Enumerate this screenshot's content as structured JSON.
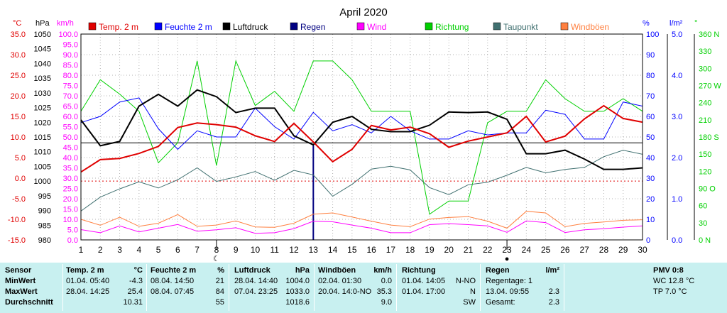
{
  "title": "April 2020",
  "colors": {
    "temp": "#e00000",
    "humidity": "#0000ff",
    "pressure": "#000000",
    "rain": "#000080",
    "wind": "#ff00ff",
    "direction": "#00d000",
    "dewpoint": "#407070",
    "gust": "#ff8040",
    "stats_bg": "#c8f0f0"
  },
  "axes": {
    "temp": {
      "unit": "°C",
      "color": "#e00000",
      "ticks": [
        "35.0",
        "30.0",
        "25.0",
        "20.0",
        "15.0",
        "10.0",
        "5.0",
        "0.0",
        "-5.0",
        "-10.0",
        "-15.0"
      ]
    },
    "pressure": {
      "unit": "hPa",
      "color": "#000000",
      "ticks": [
        "1050",
        "1045",
        "1040",
        "1035",
        "1030",
        "1025",
        "1020",
        "1015",
        "1010",
        "1005",
        "1000",
        "995",
        "990",
        "985",
        "980"
      ]
    },
    "wind": {
      "unit": "km/h",
      "color": "#ff00ff",
      "ticks": [
        "100.0",
        "95.0",
        "90.0",
        "85.0",
        "80.0",
        "75.0",
        "70.0",
        "65.0",
        "60.0",
        "55.0",
        "50.0",
        "45.0",
        "40.0",
        "35.0",
        "30.0",
        "25.0",
        "20.0",
        "15.0",
        "10.0",
        "5.0",
        "0.0"
      ]
    },
    "humidity": {
      "unit": "%",
      "color": "#0000ff",
      "ticks": [
        "100",
        "90",
        "80",
        "70",
        "60",
        "50",
        "40",
        "30",
        "20",
        "10",
        "0"
      ]
    },
    "rain": {
      "unit": "l/m²",
      "color": "#0000ff",
      "ticks": [
        "5.0",
        "4.0",
        "3.0",
        "2.0",
        "1.0",
        "0.0"
      ]
    },
    "direction": {
      "unit": "°",
      "color": "#00d000",
      "ticks": [
        "360 N",
        "330",
        "300",
        "270 W",
        "240",
        "210",
        "180 S",
        "150",
        "120",
        "90 O",
        "60",
        "30",
        "0 N"
      ]
    }
  },
  "chart_data": {
    "type": "line",
    "x": [
      1,
      2,
      3,
      4,
      5,
      6,
      7,
      8,
      9,
      10,
      11,
      12,
      13,
      14,
      15,
      16,
      17,
      18,
      19,
      20,
      21,
      22,
      23,
      24,
      25,
      26,
      27,
      28,
      29,
      30
    ],
    "x_tick_labels": [
      "1",
      "2",
      "3",
      "4",
      "5",
      "6",
      "7",
      "8",
      "9",
      "10",
      "11",
      "12",
      "13",
      "14",
      "15",
      "16",
      "17",
      "18",
      "19",
      "20",
      "21",
      "22",
      "23",
      "24",
      "25",
      "26",
      "27",
      "28",
      "29",
      "30"
    ],
    "temp_range": [
      -15,
      35
    ],
    "pressure_range": [
      980,
      1050
    ],
    "wind_range": [
      0,
      100
    ],
    "humidity_range": [
      0,
      100
    ],
    "rain_range": [
      0,
      5
    ],
    "direction_range": [
      0,
      360
    ],
    "zero_line_pressure": 1000,
    "ref_line_pressure": 1013,
    "grid": true,
    "series": [
      {
        "key": "temp",
        "name": "Temp. 2 m",
        "axis": "temp",
        "width": 2,
        "values": [
          1.5,
          4.5,
          4.8,
          6.0,
          7.7,
          12.3,
          13.4,
          13.0,
          12.4,
          10.3,
          8.9,
          13.3,
          8.8,
          4.0,
          7.0,
          12.8,
          11.7,
          12.4,
          10.8,
          7.5,
          9.0,
          10.0,
          11.0,
          15.0,
          8.8,
          10.2,
          14.4,
          17.6,
          14.5,
          13.6
        ]
      },
      {
        "key": "humidity",
        "name": "Feuchte 2 m",
        "axis": "humidity",
        "values": [
          57,
          60,
          67,
          69,
          54,
          44,
          53,
          50,
          50,
          64,
          55,
          49,
          62,
          53,
          56,
          52,
          60,
          53,
          49,
          49,
          53,
          51,
          52,
          52,
          63,
          61,
          49,
          49,
          67,
          65
        ]
      },
      {
        "key": "pressure",
        "name": "Luftdruck",
        "axis": "pressure",
        "width": 2,
        "values": [
          1020.8,
          1012.0,
          1013.5,
          1025.5,
          1029.5,
          1025.5,
          1031.0,
          1028.7,
          1023.3,
          1024.8,
          1024.8,
          1015.4,
          1012.3,
          1020.0,
          1022.0,
          1017.6,
          1016.8,
          1016.8,
          1019.0,
          1023.5,
          1023.3,
          1023.5,
          1021.0,
          1009.3,
          1009.3,
          1010.5,
          1007.5,
          1004.0,
          1004.0,
          1004.5
        ]
      },
      {
        "key": "rain",
        "name": "Regen",
        "axis": "rain",
        "type": "bar",
        "values": [
          0,
          0,
          0,
          0,
          0,
          0,
          0,
          0,
          0,
          0,
          0,
          0,
          2.3,
          0,
          0,
          0,
          0,
          0,
          0,
          0,
          0,
          0,
          0,
          0,
          0,
          0,
          0,
          0,
          0,
          0
        ]
      },
      {
        "key": "wind",
        "name": "Wind",
        "axis": "wind",
        "values": [
          5.0,
          3.5,
          6.8,
          3.9,
          5.7,
          7.5,
          4.2,
          4.9,
          5.9,
          3.2,
          3.5,
          5.5,
          9.1,
          8.8,
          7.2,
          5.7,
          3.5,
          3.5,
          7.4,
          7.9,
          7.4,
          6.8,
          3.7,
          9.2,
          8.4,
          3.6,
          4.9,
          5.4,
          6.2,
          6.8
        ]
      },
      {
        "key": "direction",
        "name": "Richtung",
        "axis": "direction",
        "values": [
          225,
          280,
          255,
          225,
          135,
          170,
          313,
          130,
          313,
          235,
          260,
          225,
          313,
          313,
          280,
          225,
          225,
          225,
          45,
          68,
          68,
          205,
          225,
          225,
          280,
          247,
          225,
          225,
          247,
          225
        ]
      },
      {
        "key": "dewpoint",
        "name": "Taupunkt",
        "axis": "temp",
        "values": [
          -8.0,
          -4.6,
          -2.6,
          -0.9,
          -2.4,
          -0.4,
          2.5,
          -0.8,
          0.3,
          1.6,
          -0.5,
          1.9,
          0.8,
          -4.4,
          -1.5,
          2.2,
          2.9,
          2.0,
          -2.3,
          -4.0,
          -1.6,
          -1.0,
          0.7,
          2.6,
          1.3,
          2.1,
          2.6,
          5.2,
          6.8,
          5.8
        ]
      },
      {
        "key": "gust",
        "name": "Windböen",
        "axis": "wind",
        "values": [
          10.0,
          7.1,
          11.0,
          6.6,
          8.1,
          12.3,
          6.6,
          7.2,
          9.2,
          6.3,
          6.1,
          8.1,
          12.5,
          13.1,
          11.1,
          9.1,
          7.2,
          6.4,
          10.1,
          10.9,
          11.3,
          9.1,
          5.7,
          13.9,
          13.1,
          6.4,
          8.0,
          8.7,
          9.5,
          9.8
        ]
      }
    ]
  },
  "moon_markers": [
    {
      "day": 8,
      "symbol": "☾"
    },
    {
      "day": 23,
      "symbol": "●"
    }
  ],
  "stats": {
    "sensor": {
      "header": "Sensor",
      "min_label": "MinWert",
      "max_label": "MaxWert",
      "avg_label": "Durchschnitt"
    },
    "temp": {
      "header": "Temp. 2 m",
      "unit": "°C",
      "min_time": "01.04.  05:40",
      "min_val": "-4.3",
      "max_time": "28.04.  14:25",
      "max_val": "25.4",
      "avg_val": "10.31"
    },
    "humidity": {
      "header": "Feuchte  2 m",
      "unit": "%",
      "min_time": "08.04.  14:50",
      "min_val": "21",
      "max_time": "08.04.  07:45",
      "max_val": "84",
      "avg_val": "55"
    },
    "pressure": {
      "header": "Luftdruck",
      "unit": "hPa",
      "min_time": "28.04.  14:40",
      "min_val": "1004.0",
      "max_time": "07.04.  23:25",
      "max_val": "1033.0",
      "avg_val": "1018.6"
    },
    "gust": {
      "header": "Windböen",
      "unit": "km/h",
      "min_time": "02.04.  01:30",
      "min_val": "0.0",
      "max_time": "20.04.  14:0-NO",
      "max_val": "35.3",
      "avg_val": "9.0"
    },
    "direction": {
      "header": "Richtung",
      "min_time": "01.04.  14:05",
      "min_val": "N-NO",
      "max_time": "01.04.  17:00",
      "max_val": "N",
      "avg_val": "SW"
    },
    "rain": {
      "header": "Regen",
      "unit": "l/m²",
      "line1": "Regentage: 1",
      "line2_time": "13.04.  09:55",
      "line2_val": "2.3",
      "line3_label": "Gesamt:",
      "line3_val": "2.3"
    },
    "pmv": {
      "header": "PMV 0:8",
      "wc": "WC 12.8 °C",
      "tp": "TP 7.0 °C"
    }
  }
}
